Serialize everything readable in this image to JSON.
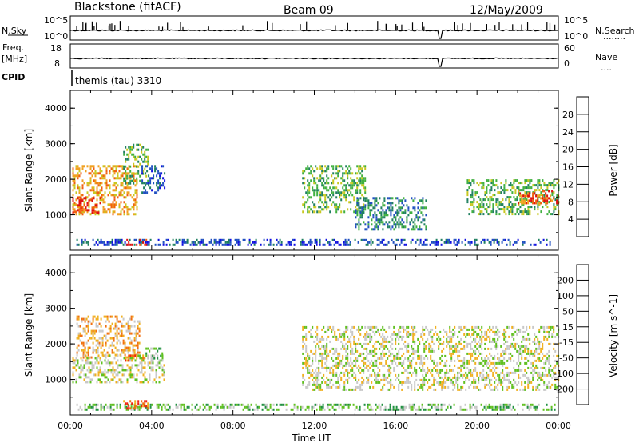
{
  "header": {
    "title_left": "Blackstone (fitACF)",
    "title_center": "Beam 09",
    "title_right": "12/May/2009"
  },
  "status_panels": {
    "sky": {
      "label": "N.Sky",
      "ticks": [
        "10^5",
        "10^0"
      ]
    },
    "search": {
      "label": "N.Search",
      "ticks": [
        "10^5",
        "10^0"
      ],
      "legend": "........"
    },
    "freq": {
      "label_line1": "Freq.",
      "label_line2": "[MHz]",
      "ticks": [
        "18",
        "8"
      ]
    },
    "nave": {
      "label": "Nave",
      "ticks": [
        "60",
        "0"
      ],
      "legend": "...."
    },
    "cpid": {
      "label": "CPID",
      "program": "themis (tau) 3310"
    }
  },
  "chart_data": [
    {
      "type": "heatmap",
      "ylabel": "Slant Range [km]",
      "ylim": [
        0,
        4500
      ],
      "yticks": [
        "1000",
        "2000",
        "3000",
        "4000"
      ],
      "xlim": [
        "00:00",
        "24:00"
      ],
      "colorbar": {
        "label": "Power [dB]",
        "ticks": [
          "4",
          "8",
          "12",
          "16",
          "20",
          "24",
          "28"
        ],
        "colors": [
          "#1010e0",
          "#2050c0",
          "#208060",
          "#40b040",
          "#c8c820",
          "#f0a020",
          "#f06010",
          "#e01010"
        ]
      },
      "echo_regions": [
        {
          "x": [
            0.1,
            3.3
          ],
          "y": [
            1000,
            2400
          ],
          "level": 5
        },
        {
          "x": [
            0.1,
            1.5
          ],
          "y": [
            1050,
            1500
          ],
          "level": 7
        },
        {
          "x": [
            2.6,
            3.8
          ],
          "y": [
            1900,
            3000
          ],
          "level": 3
        },
        {
          "x": [
            3.5,
            4.6
          ],
          "y": [
            1600,
            2400
          ],
          "level": 1
        },
        {
          "x": [
            11.4,
            14.5
          ],
          "y": [
            1100,
            2400
          ],
          "level": 3
        },
        {
          "x": [
            14.0,
            17.5
          ],
          "y": [
            600,
            1500
          ],
          "level": 2
        },
        {
          "x": [
            19.5,
            24.0
          ],
          "y": [
            1000,
            2000
          ],
          "level": 3
        },
        {
          "x": [
            22.0,
            24.0
          ],
          "y": [
            1300,
            1700
          ],
          "level": 6
        },
        {
          "x": [
            0.3,
            23.8
          ],
          "y": [
            180,
            320
          ],
          "level": 1
        },
        {
          "x": [
            2.6,
            3.8
          ],
          "y": [
            180,
            320
          ],
          "level": 7
        }
      ]
    },
    {
      "type": "heatmap",
      "ylabel": "Slant Range [km]",
      "ylim": [
        0,
        4500
      ],
      "yticks": [
        "1000",
        "2000",
        "3000",
        "4000"
      ],
      "xlabel": "Time UT",
      "xticks": [
        "00:00",
        "04:00",
        "08:00",
        "12:00",
        "16:00",
        "20:00",
        "00:00"
      ],
      "colorbar": {
        "label": "Velocity [m s^-1]",
        "ticks": [
          "200",
          "100",
          "50",
          "15",
          "-15",
          "-50",
          "-100",
          "-200"
        ],
        "colors": [
          "#1a3aa0",
          "#2a6a7a",
          "#209040",
          "#60c020",
          "#c8c8c8",
          "#f0b020",
          "#f07010",
          "#f02010",
          "#e00000"
        ]
      },
      "echo_regions": [
        {
          "x": [
            0.3,
            3.4
          ],
          "y": [
            1600,
            2800
          ],
          "level": 5
        },
        {
          "x": [
            0.1,
            4.6
          ],
          "y": [
            900,
            1700
          ],
          "level": 4
        },
        {
          "x": [
            2.6,
            3.8
          ],
          "y": [
            1500,
            1700
          ],
          "level": 6
        },
        {
          "x": [
            3.7,
            4.5
          ],
          "y": [
            1600,
            1900
          ],
          "level": 3
        },
        {
          "x": [
            11.4,
            24.0
          ],
          "y": [
            700,
            2500
          ],
          "level": 4
        },
        {
          "x": [
            0.3,
            23.8
          ],
          "y": [
            180,
            320
          ],
          "level": 3
        },
        {
          "x": [
            2.6,
            3.8
          ],
          "y": [
            180,
            420
          ],
          "level": 6
        }
      ]
    }
  ]
}
